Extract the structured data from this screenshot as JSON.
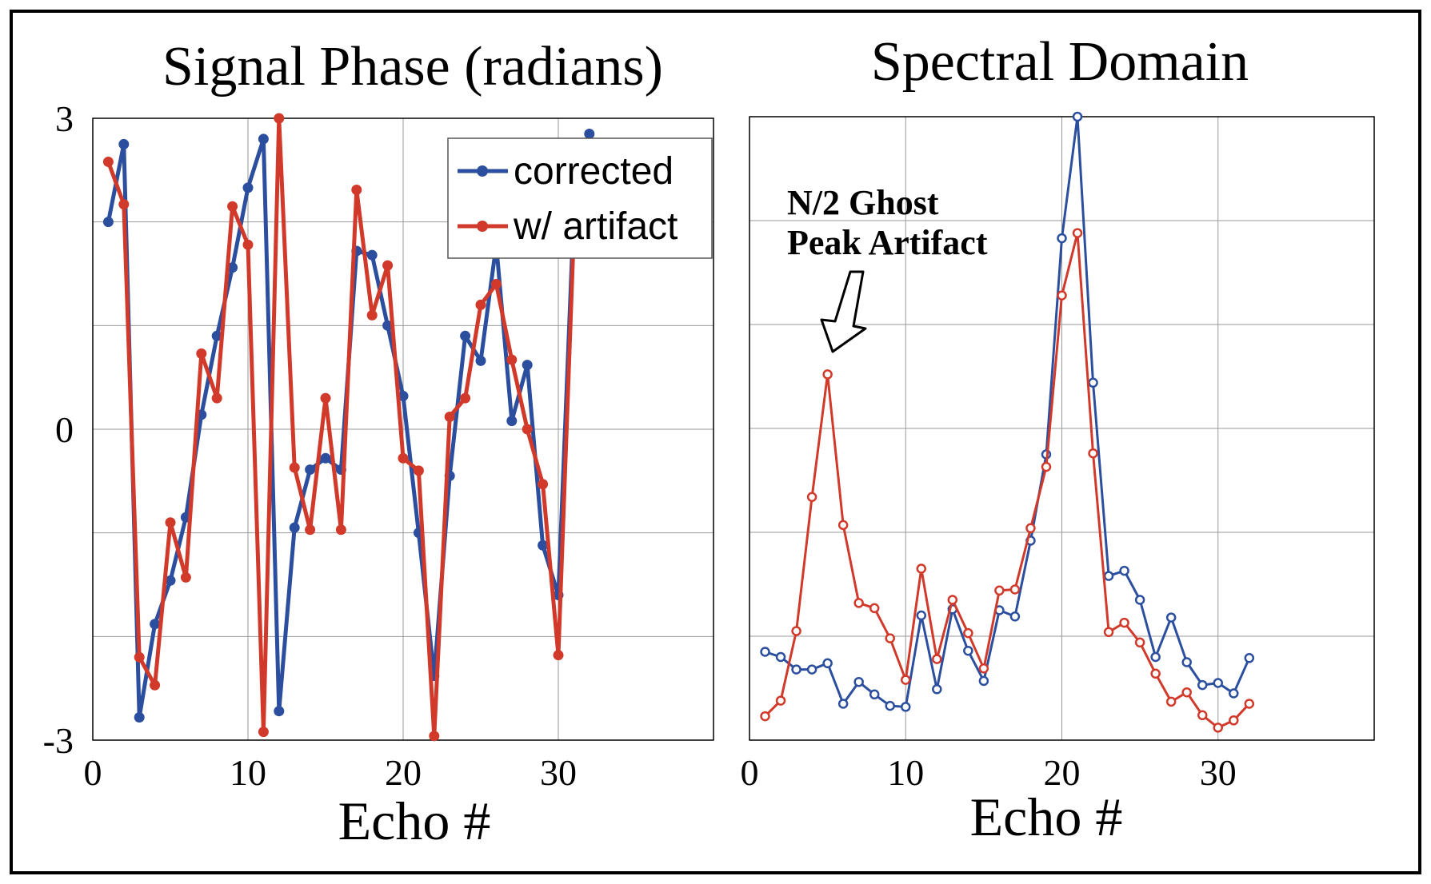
{
  "chart_data": [
    {
      "type": "line",
      "title": "Signal Phase (radians)",
      "xlabel": "Echo #",
      "ylabel": "",
      "xlim": [
        0,
        40
      ],
      "ylim": [
        -3,
        3
      ],
      "xticks": [
        0,
        10,
        20,
        30
      ],
      "xtick_labels": [
        "0",
        "10",
        "20",
        "30"
      ],
      "yticks": [
        -3,
        0,
        3
      ],
      "ytick_labels": [
        "-3",
        "0",
        "3"
      ],
      "grid": true,
      "legend_position": "top-right",
      "series": [
        {
          "name": "corrected",
          "color": "#2b4f9e",
          "x": [
            1,
            2,
            3,
            4,
            5,
            6,
            7,
            8,
            9,
            10,
            11,
            12,
            13,
            14,
            15,
            16,
            17,
            18,
            19,
            20,
            21,
            22,
            23,
            24,
            25,
            26,
            27,
            28,
            29,
            30,
            31,
            32
          ],
          "y": [
            2.0,
            2.75,
            -2.78,
            -1.88,
            -1.46,
            -0.85,
            0.14,
            0.9,
            1.56,
            2.33,
            2.8,
            -2.72,
            -0.95,
            -0.39,
            -0.28,
            -0.39,
            1.72,
            1.68,
            1.0,
            0.32,
            -1.0,
            -2.38,
            -0.45,
            0.9,
            0.66,
            1.78,
            0.08,
            0.62,
            -1.12,
            -1.6,
            2.1,
            2.85
          ]
        },
        {
          "name": "w/ artifact",
          "color": "#d13a2a",
          "x": [
            1,
            2,
            3,
            4,
            5,
            6,
            7,
            8,
            9,
            10,
            11,
            12,
            13,
            14,
            15,
            16,
            17,
            18,
            19,
            20,
            21,
            22,
            23,
            24,
            25,
            26,
            27,
            28,
            29,
            30,
            31,
            32
          ],
          "y": [
            2.58,
            2.17,
            -2.2,
            -2.47,
            -0.9,
            -1.43,
            0.73,
            0.3,
            2.15,
            1.78,
            -2.92,
            3.0,
            -0.37,
            -0.97,
            0.3,
            -0.97,
            2.31,
            1.1,
            1.58,
            -0.28,
            -0.4,
            -2.96,
            0.12,
            0.3,
            1.2,
            1.4,
            0.67,
            0.0,
            -0.53,
            -2.18,
            1.9,
            2.7
          ]
        }
      ]
    },
    {
      "type": "line",
      "title": "Spectral Domain",
      "xlabel": "Echo #",
      "ylabel": "",
      "xlim": [
        0,
        40
      ],
      "ylim": [
        0,
        6
      ],
      "xticks": [
        0,
        10,
        20,
        30
      ],
      "xtick_labels": [
        "0",
        "10",
        "20",
        "30"
      ],
      "grid": true,
      "annotation": {
        "lines": [
          "N/2 Ghost",
          "Peak Artifact"
        ],
        "arrow_target": [
          5,
          3.7
        ]
      },
      "series": [
        {
          "name": "corrected",
          "color": "#2b4f9e",
          "x": [
            1,
            2,
            3,
            4,
            5,
            6,
            7,
            8,
            9,
            10,
            11,
            12,
            13,
            14,
            15,
            16,
            17,
            18,
            19,
            20,
            21,
            22,
            23,
            24,
            25,
            26,
            27,
            28,
            29,
            30,
            31,
            32
          ],
          "y": [
            0.85,
            0.8,
            0.68,
            0.68,
            0.74,
            0.35,
            0.56,
            0.44,
            0.33,
            0.32,
            1.2,
            0.49,
            1.26,
            0.86,
            0.57,
            1.25,
            1.19,
            1.92,
            2.75,
            4.83,
            6.0,
            3.44,
            1.58,
            1.63,
            1.35,
            0.8,
            1.18,
            0.75,
            0.53,
            0.55,
            0.45,
            0.79
          ]
        },
        {
          "name": "w/ artifact",
          "color": "#d13a2a",
          "x": [
            1,
            2,
            3,
            4,
            5,
            6,
            7,
            8,
            9,
            10,
            11,
            12,
            13,
            14,
            15,
            16,
            17,
            18,
            19,
            20,
            21,
            22,
            23,
            24,
            25,
            26,
            27,
            28,
            29,
            30,
            31,
            32
          ],
          "y": [
            0.23,
            0.38,
            1.05,
            2.34,
            3.52,
            2.07,
            1.32,
            1.27,
            0.98,
            0.58,
            1.65,
            0.78,
            1.35,
            1.03,
            0.69,
            1.44,
            1.45,
            2.04,
            2.63,
            4.28,
            4.88,
            2.76,
            1.04,
            1.13,
            0.94,
            0.64,
            0.37,
            0.46,
            0.24,
            0.12,
            0.19,
            0.35
          ]
        }
      ]
    }
  ]
}
